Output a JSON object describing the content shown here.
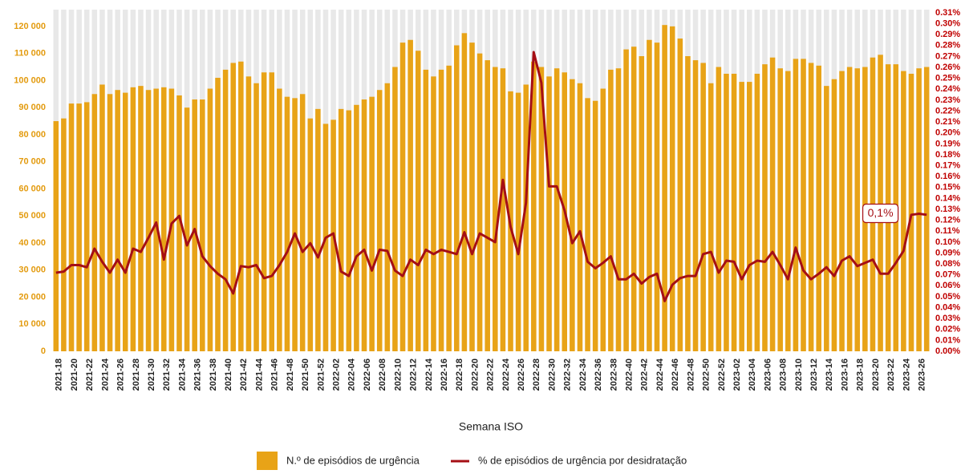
{
  "chart_data": {
    "type": "bar",
    "x_label": "Semana ISO",
    "annotation": "0,1%",
    "categories": [
      "2021-18",
      null,
      "2021-20",
      null,
      "2021-22",
      null,
      "2021-24",
      null,
      "2021-26",
      null,
      "2021-28",
      null,
      "2021-30",
      null,
      "2021-32",
      null,
      "2021-34",
      null,
      "2021-36",
      null,
      "2021-38",
      null,
      "2021-40",
      null,
      "2021-42",
      null,
      "2021-44",
      null,
      "2021-46",
      null,
      "2021-48",
      null,
      "2021-50",
      null,
      "2021-52",
      null,
      "2022-02",
      null,
      "2022-04",
      null,
      "2022-06",
      null,
      "2022-08",
      null,
      "2022-10",
      null,
      "2022-12",
      null,
      "2022-14",
      null,
      "2022-16",
      null,
      "2022-18",
      null,
      "2022-20",
      null,
      "2022-22",
      null,
      "2022-24",
      null,
      "2022-26",
      null,
      "2022-28",
      null,
      "2022-30",
      null,
      "2022-32",
      null,
      "2022-34",
      null,
      "2022-36",
      null,
      "2022-38",
      null,
      "2022-40",
      null,
      "2022-42",
      null,
      "2022-44",
      null,
      "2022-46",
      null,
      "2022-48",
      null,
      "2022-50",
      null,
      "2022-52",
      null,
      "2023-02",
      null,
      "2023-04",
      null,
      "2023-06",
      null,
      "2023-08",
      null,
      "2023-10",
      null,
      "2023-12",
      null,
      "2023-14",
      null,
      "2023-16",
      null,
      "2023-18",
      null,
      "2023-20",
      null,
      "2023-22",
      null,
      "2023-24",
      null,
      "2023-26",
      null
    ],
    "series": [
      {
        "name": "N.º de episódios de urgência",
        "color": "#E8A317",
        "values": [
          85000,
          86000,
          91500,
          91500,
          92000,
          95000,
          98500,
          95000,
          96500,
          95500,
          97500,
          98000,
          96500,
          97000,
          97500,
          97000,
          94500,
          90000,
          93000,
          93000,
          97000,
          101000,
          104000,
          106500,
          107000,
          101500,
          99000,
          103000,
          103000,
          97000,
          94000,
          93500,
          95000,
          86000,
          89500,
          84000,
          85500,
          89500,
          89000,
          91000,
          93000,
          94000,
          96500,
          99000,
          105000,
          114000,
          115000,
          111000,
          104000,
          101500,
          104000,
          105500,
          113000,
          117500,
          114000,
          110000,
          107500,
          105000,
          104500,
          96000,
          95500,
          98500,
          107000,
          105000,
          101500,
          104500,
          103000,
          100500,
          99000,
          93500,
          92500,
          97000,
          104000,
          104500,
          111500,
          112500,
          109000,
          115000,
          114000,
          120500,
          120000,
          115500,
          109000,
          107500,
          106500,
          99000,
          105000,
          102500,
          102500,
          99500,
          99500,
          102500,
          106000,
          108500,
          104500,
          103500,
          108000,
          108000,
          106500,
          105500,
          98000,
          100500,
          103500,
          105000,
          104500,
          105000,
          108500,
          109500,
          106000,
          106000,
          103500,
          102500,
          104500,
          105000
        ]
      },
      {
        "name": "% de episódios de urgência por desidratação",
        "color": "#A50F15",
        "axis": "y2",
        "type": "line",
        "values": [
          0.072,
          0.073,
          0.079,
          0.079,
          0.077,
          0.094,
          0.082,
          0.072,
          0.084,
          0.072,
          0.094,
          0.091,
          0.104,
          0.118,
          0.084,
          0.117,
          0.124,
          0.097,
          0.112,
          0.087,
          0.078,
          0.071,
          0.066,
          0.053,
          0.078,
          0.077,
          0.079,
          0.067,
          0.069,
          0.079,
          0.091,
          0.108,
          0.091,
          0.099,
          0.086,
          0.104,
          0.108,
          0.073,
          0.069,
          0.087,
          0.093,
          0.074,
          0.093,
          0.092,
          0.074,
          0.069,
          0.084,
          0.079,
          0.093,
          0.089,
          0.093,
          0.091,
          0.089,
          0.109,
          0.089,
          0.108,
          0.104,
          0.1,
          0.157,
          0.114,
          0.089,
          0.136,
          0.274,
          0.246,
          0.151,
          0.151,
          0.129,
          0.099,
          0.11,
          0.082,
          0.076,
          0.081,
          0.087,
          0.066,
          0.066,
          0.071,
          0.062,
          0.068,
          0.071,
          0.046,
          0.061,
          0.067,
          0.069,
          0.069,
          0.089,
          0.091,
          0.072,
          0.083,
          0.082,
          0.066,
          0.079,
          0.083,
          0.082,
          0.091,
          0.079,
          0.066,
          0.095,
          0.074,
          0.066,
          0.071,
          0.077,
          0.069,
          0.083,
          0.087,
          0.078,
          0.081,
          0.084,
          0.071,
          0.071,
          0.081,
          0.092,
          0.125,
          0.126,
          0.125
        ]
      }
    ],
    "ylim": [
      0,
      125000
    ],
    "yticks": [
      0,
      {
        "value": 10000,
        "label": "10 000"
      },
      {
        "value": 20000,
        "label": "20 000"
      },
      {
        "value": 30000,
        "label": "30 000"
      },
      {
        "value": 40000,
        "label": "40 000"
      },
      {
        "value": 50000,
        "label": "50 000"
      },
      {
        "value": 60000,
        "label": "60 000"
      },
      {
        "value": 70000,
        "label": "70 000"
      },
      {
        "value": 80000,
        "label": "80 000"
      },
      {
        "value": 90000,
        "label": "90 000"
      },
      {
        "value": 100000,
        "label": "100 000"
      },
      {
        "value": 110000,
        "label": "110 000"
      },
      {
        "value": 120000,
        "label": "120 000"
      }
    ],
    "y2lim": [
      0,
      0.31
    ],
    "y2ticks": [
      {
        "value": 0,
        "label": "0.00%"
      },
      {
        "value": 0.01,
        "label": "0.01%"
      },
      {
        "value": 0.02,
        "label": "0.02%"
      },
      {
        "value": 0.03,
        "label": "0.03%"
      },
      {
        "value": 0.04,
        "label": "0.04%"
      },
      {
        "value": 0.05,
        "label": "0.05%"
      },
      {
        "value": 0.06,
        "label": "0.06%"
      },
      {
        "value": 0.07,
        "label": "0.07%"
      },
      {
        "value": 0.08,
        "label": "0.08%"
      },
      {
        "value": 0.09,
        "label": "0.09%"
      },
      {
        "value": 0.1,
        "label": "0.10%"
      },
      {
        "value": 0.11,
        "label": "0.11%"
      },
      {
        "value": 0.12,
        "label": "0.12%"
      },
      {
        "value": 0.13,
        "label": "0.13%"
      },
      {
        "value": 0.14,
        "label": "0.14%"
      },
      {
        "value": 0.15,
        "label": "0.15%"
      },
      {
        "value": 0.16,
        "label": "0.16%"
      },
      {
        "value": 0.17,
        "label": "0.17%"
      },
      {
        "value": 0.18,
        "label": "0.18%"
      },
      {
        "value": 0.19,
        "label": "0.19%"
      },
      {
        "value": 0.2,
        "label": "0.20%"
      },
      {
        "value": 0.21,
        "label": "0.21%"
      },
      {
        "value": 0.22,
        "label": "0.22%"
      },
      {
        "value": 0.23,
        "label": "0.23%"
      },
      {
        "value": 0.24,
        "label": "0.24%"
      },
      {
        "value": 0.25,
        "label": "0.25%"
      },
      {
        "value": 0.26,
        "label": "0.26%"
      },
      {
        "value": 0.27,
        "label": "0.27%"
      },
      {
        "value": 0.28,
        "label": "0.28%"
      },
      {
        "value": 0.29,
        "label": "0.29%"
      },
      {
        "value": 0.3,
        "label": "0.30%"
      },
      {
        "value": 0.31,
        "label": "0.31%"
      }
    ],
    "legend": "bottom"
  }
}
